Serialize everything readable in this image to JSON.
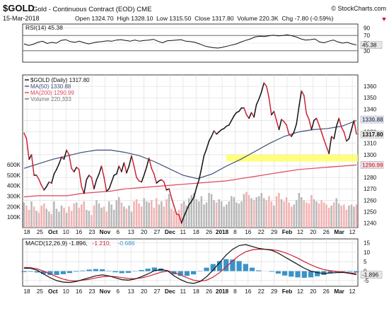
{
  "header": {
    "symbol": "$GOLD",
    "description": "Gold - Continuous Contract (EOD) CME",
    "brand": "© StockCharts.com",
    "date": "15-Mar-2018",
    "ohlc": "Open 1324.70  High 1328.10  Low 1315.50  Close 1317.80  Volume 220.3K  Chg -7.80 (-0.59%)",
    "change_icon": "down-triangle-icon"
  },
  "colors": {
    "frame": "#3a3a3a",
    "grid": "#d9d9d9",
    "price_up": "#111111",
    "price_down": "#cc2233",
    "ma50": "#3f4f7a",
    "ma200": "#e0445a",
    "volume_up": "#b9b9b9",
    "volume_down": "#f2b2b2",
    "macd_hist": "#3a93c8",
    "highlight": "#ffff66",
    "price_badge": "#e8e8e8"
  },
  "chart_data": [
    {
      "type": "line",
      "panel": "RSI",
      "legend": "RSI(14) 45.38",
      "ylim": [
        0,
        100
      ],
      "y_ticks": [
        30,
        50,
        70,
        90
      ],
      "reference_lines": [
        30,
        70
      ],
      "last_value_label": "45.38",
      "series": [
        {
          "name": "RSI(14)",
          "values": [
            48,
            44,
            47,
            52,
            55,
            49,
            52,
            50,
            57,
            59,
            54,
            52,
            55,
            51,
            48,
            51,
            53,
            54,
            56,
            55,
            58,
            59,
            57,
            55,
            58,
            55,
            57,
            58,
            60,
            55,
            51,
            56,
            57,
            58,
            59,
            55,
            54,
            52,
            48,
            43,
            40,
            38,
            37,
            39,
            42,
            45,
            48,
            53,
            57,
            61,
            66,
            68,
            67,
            69,
            71,
            69,
            70,
            72,
            69,
            66,
            61,
            58,
            59,
            61,
            53,
            51,
            55,
            58,
            53,
            50,
            52,
            48,
            45
          ]
        }
      ]
    },
    {
      "type": "line",
      "panel": "Price",
      "ylim": [
        1236,
        1370
      ],
      "y_ticks": [
        1240,
        1250,
        1260,
        1270,
        1280,
        1290,
        1300,
        1310,
        1320,
        1330,
        1340,
        1350,
        1360
      ],
      "volume_ylim": [
        0,
        640000
      ],
      "volume_ticks": [
        "600K",
        "500K",
        "400K",
        "300K",
        "200K",
        "100K"
      ],
      "volume_tick_values": [
        600000,
        500000,
        400000,
        300000,
        200000,
        100000
      ],
      "legend": [
        {
          "text": "$GOLD (Daily) 1317.80",
          "color": "#111111"
        },
        {
          "text": "MA(50) 1330.88",
          "color": "#3f4f7a"
        },
        {
          "text": "MA(200) 1290.99",
          "color": "#e0445a"
        },
        {
          "text": "Volume 220,333",
          "color": "#777777"
        }
      ],
      "value_labels": [
        {
          "text": "1330.88",
          "value": 1330.88,
          "color": "#3f4f7a"
        },
        {
          "text": "1317.80",
          "value": 1317.8,
          "color": "#111111"
        },
        {
          "text": "1290.99",
          "value": 1290.99,
          "color": "#e0445a"
        }
      ],
      "highlight_band": [
        1294,
        1300
      ],
      "x_ticks": [
        "18",
        "25",
        "Oct",
        "10",
        "16",
        "23",
        "Nov",
        "6",
        "13",
        "20",
        "27",
        "Dec",
        "11",
        "18",
        "26",
        "2018",
        "8",
        "16",
        "22",
        "29",
        "Feb",
        "12",
        "20",
        "26",
        "Mar",
        "12"
      ],
      "series": [
        {
          "name": "$GOLD (Daily)",
          "values": [
            1319,
            1314,
            1296,
            1300,
            1282,
            1282,
            1278,
            1273,
            1269,
            1272,
            1276,
            1275,
            1283,
            1287,
            1292,
            1298,
            1296,
            1304,
            1300,
            1288,
            1285,
            1289,
            1287,
            1272,
            1266,
            1278,
            1282,
            1280,
            1270,
            1278,
            1283,
            1290,
            1280,
            1268,
            1270,
            1276,
            1282,
            1283,
            1290,
            1285,
            1293,
            1284,
            1290,
            1299,
            1290,
            1280,
            1277,
            1276,
            1282,
            1289,
            1297,
            1288,
            1283,
            1275,
            1277,
            1278,
            1276,
            1269,
            1270,
            1262,
            1255,
            1248,
            1247,
            1240,
            1246,
            1251,
            1256,
            1259,
            1263,
            1271,
            1278,
            1288,
            1299,
            1305,
            1312,
            1316,
            1321,
            1318,
            1320,
            1322,
            1323,
            1325,
            1326,
            1330,
            1334,
            1337,
            1338,
            1341,
            1341,
            1335,
            1332,
            1337,
            1333,
            1344,
            1349,
            1355,
            1363,
            1360,
            1350,
            1335,
            1338,
            1330,
            1322,
            1331,
            1329,
            1326,
            1318,
            1316,
            1320,
            1327,
            1342,
            1356,
            1352,
            1336,
            1331,
            1322,
            1330,
            1332,
            1326,
            1320,
            1313,
            1307,
            1301,
            1316,
            1314,
            1325,
            1332,
            1324,
            1320,
            1312,
            1314,
            1322,
            1330,
            1318
          ],
          "direction": "mixed"
        },
        {
          "name": "MA(50)",
          "values": [
            1288,
            1292,
            1296,
            1299,
            1302,
            1304,
            1304,
            1302,
            1299,
            1294,
            1288,
            1282,
            1279,
            1283,
            1290,
            1296,
            1303,
            1310,
            1316,
            1320,
            1322,
            1323,
            1325,
            1330
          ]
        },
        {
          "name": "MA(200)",
          "values": [
            1263,
            1264,
            1264,
            1264,
            1266,
            1267,
            1268,
            1270,
            1271,
            1272,
            1273,
            1274,
            1275,
            1276,
            1277,
            1279,
            1281,
            1283,
            1285,
            1287,
            1288,
            1289,
            1290,
            1291
          ]
        },
        {
          "name": "Volume",
          "values": [
            240000,
            210000,
            170000,
            250000,
            200000,
            160000,
            140000,
            210000,
            230000,
            180000,
            150000,
            130000,
            250000,
            180000,
            150000,
            210000,
            190000,
            140000,
            200000,
            160000,
            230000,
            240000,
            190000,
            220000,
            250000,
            170000,
            160000,
            120000,
            210000,
            260000,
            230000,
            190000,
            200000,
            150000,
            250000,
            220000,
            170000,
            260000,
            290000,
            240000,
            200000,
            180000,
            210000,
            150000,
            250000,
            270000,
            230000,
            200000,
            280000,
            250000,
            240000,
            260000,
            190000,
            280000,
            220000,
            250000,
            200000,
            270000,
            320000,
            180000,
            160000,
            140000,
            170000,
            230000,
            250000,
            210000,
            280000,
            310000,
            330000,
            270000,
            250000,
            300000,
            220000,
            240000,
            330000,
            320000,
            260000,
            240000,
            270000,
            250000,
            200000,
            220000,
            250000,
            300000,
            290000,
            240000,
            230000,
            250000,
            320000,
            340000,
            310000,
            280000,
            260000,
            290000,
            300000,
            330000,
            280000,
            260000,
            300000,
            250000,
            210000,
            300000,
            330000,
            270000,
            250000,
            290000,
            240000,
            200000,
            220000,
            260000,
            330000,
            290000,
            260000,
            240000,
            230000,
            310000,
            270000,
            250000,
            230000,
            260000,
            240000,
            220000,
            190000,
            210000,
            240000,
            280000,
            230000,
            210000,
            220000,
            170000,
            210000,
            220000,
            200000,
            220333
          ]
        }
      ]
    },
    {
      "type": "line",
      "panel": "MACD",
      "legend": [
        {
          "text": "MACD(12,26,9) -1.896,",
          "color": "#111111"
        },
        {
          "text": " -1.210,",
          "color": "#cc2233"
        },
        {
          "text": " -0.686",
          "color": "#3a93c8"
        }
      ],
      "ylim": [
        -8,
        17
      ],
      "y_ticks": [
        15,
        10,
        5,
        0,
        -5
      ],
      "y_tick_labels": [
        "15",
        "10",
        "5",
        "0",
        "-5"
      ],
      "last_value_label": "-1.896",
      "x_ticks": [
        "18",
        "25",
        "Oct",
        "10",
        "16",
        "23",
        "Nov",
        "6",
        "13",
        "20",
        "27",
        "Dec",
        "11",
        "18",
        "26",
        "2018",
        "8",
        "16",
        "22",
        "29",
        "Feb",
        "12",
        "20",
        "26",
        "Mar",
        "12"
      ],
      "series": [
        {
          "name": "MACD",
          "values": [
            1.5,
            1.5,
            0.5,
            -1.5,
            -3.5,
            -5,
            -5.8,
            -6,
            -5.5,
            -4.5,
            -3.5,
            -2.5,
            -2,
            -2.5,
            -3.5,
            -4.5,
            -4.8,
            -4.2,
            -3,
            -1.5,
            0.2,
            0.8,
            0.3,
            -2.5,
            -4.5,
            -6,
            -6.5,
            -5.5,
            -3,
            0.5,
            4.5,
            8.5,
            11.5,
            13.5,
            14,
            13,
            12,
            11.5,
            11,
            9.5,
            7.5,
            5.5,
            3.5,
            1.5,
            0,
            -0.8,
            -1.2,
            -1,
            -0.8,
            -0.7,
            -1.2,
            -1.9
          ]
        },
        {
          "name": "Signal",
          "values": [
            2,
            1.8,
            1.2,
            0,
            -1.5,
            -3,
            -4.2,
            -5,
            -5.2,
            -4.8,
            -4.3,
            -3.6,
            -3,
            -2.7,
            -2.9,
            -3.4,
            -3.9,
            -4,
            -3.6,
            -2.8,
            -1.7,
            -0.6,
            0,
            -0.8,
            -2,
            -3.5,
            -4.8,
            -5.3,
            -4.8,
            -3.2,
            -0.8,
            2.2,
            5.4,
            8.2,
            10.2,
            11.2,
            11.6,
            11.5,
            11.3,
            10.8,
            9.8,
            8.4,
            6.8,
            5,
            3.3,
            1.9,
            0.8,
            0.2,
            -0.2,
            -0.5,
            -0.9,
            -1.2
          ]
        },
        {
          "name": "Histogram",
          "values": [
            -0.5,
            -0.3,
            -0.7,
            -1.5,
            -2,
            -2,
            -1.6,
            -1,
            -0.3,
            0.3,
            0.8,
            1.1,
            1,
            0.2,
            -0.6,
            -1.1,
            -0.9,
            -0.2,
            0.6,
            1.3,
            1.9,
            1.4,
            0.3,
            -1.7,
            -2.5,
            -2.5,
            -1.7,
            -0.2,
            1.8,
            3.7,
            5.3,
            6.3,
            6.1,
            5.3,
            3.8,
            1.8,
            0.4,
            0,
            -0.3,
            -1.3,
            -2.3,
            -2.9,
            -3.3,
            -3.5,
            -3.3,
            -2.7,
            -2,
            -1.2,
            -0.6,
            -0.2,
            -0.3,
            -0.7
          ]
        }
      ]
    }
  ]
}
